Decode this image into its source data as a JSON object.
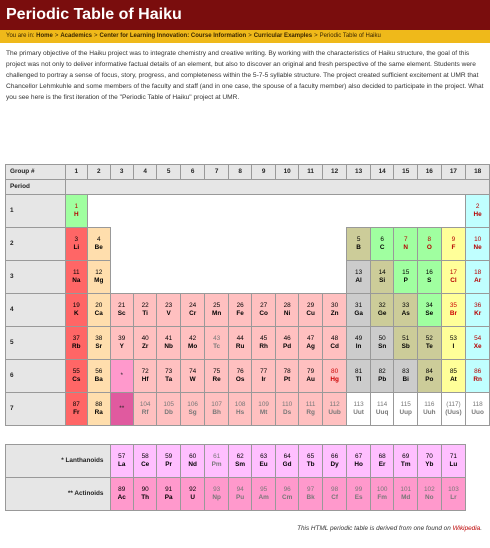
{
  "header": {
    "title": "Periodic Table of Haiku"
  },
  "breadcrumb": {
    "prefix": "You are in:",
    "items": [
      "Home",
      "Academics",
      "Center for Learning Innovation: Course Information",
      "Curricular Examples"
    ],
    "current": "Periodic Table of Haiku",
    "separator": ">"
  },
  "intro": "The primary objective of the Haiku project was to integrate chemistry and creative writing. By working with the characteristics of Haiku structure, the goal of this project was not only to deliver informative factual details of an element, but also to discover an original and fresh perspective of the same element. Students were challenged to portray a sense of focus, story, progress, and completeness within the 5-7-5 syllable structure. The project created sufficient excitement at UMR that Chancellor Lehmkuhle and some members of the faculty and staff (and in one case, the spouse of a faculty member) also decided to participate in the project. What you see here is the first iteration of the \"Periodic Table of Haiku\" project at UMR.",
  "table": {
    "group_label": "Group #",
    "period_label": "Period",
    "groups": [
      "1",
      "2",
      "3",
      "4",
      "5",
      "6",
      "7",
      "8",
      "9",
      "10",
      "11",
      "12",
      "13",
      "14",
      "15",
      "16",
      "17",
      "18"
    ],
    "periods": [
      "1",
      "2",
      "3",
      "4",
      "5",
      "6",
      "7"
    ],
    "rows": [
      [
        {
          "n": "1",
          "s": "H",
          "c": "nonmetal",
          "t": "gas"
        },
        {
          "blank": true,
          "span": 16
        },
        {
          "n": "2",
          "s": "He",
          "c": "noble",
          "t": "gas"
        }
      ],
      [
        {
          "n": "3",
          "s": "Li",
          "c": "alkali",
          "t": "solid"
        },
        {
          "n": "4",
          "s": "Be",
          "c": "alkaline",
          "t": "solid"
        },
        {
          "blank": true,
          "span": 10
        },
        {
          "n": "5",
          "s": "B",
          "c": "metalloid",
          "t": "solid"
        },
        {
          "n": "6",
          "s": "C",
          "c": "nonmetal",
          "t": "solid"
        },
        {
          "n": "7",
          "s": "N",
          "c": "nonmetal",
          "t": "gas"
        },
        {
          "n": "8",
          "s": "O",
          "c": "nonmetal",
          "t": "gas"
        },
        {
          "n": "9",
          "s": "F",
          "c": "halogen",
          "t": "gas"
        },
        {
          "n": "10",
          "s": "Ne",
          "c": "noble",
          "t": "gas"
        }
      ],
      [
        {
          "n": "11",
          "s": "Na",
          "c": "alkali",
          "t": "solid"
        },
        {
          "n": "12",
          "s": "Mg",
          "c": "alkaline",
          "t": "solid"
        },
        {
          "blank": true,
          "span": 10
        },
        {
          "n": "13",
          "s": "Al",
          "c": "poor",
          "t": "solid"
        },
        {
          "n": "14",
          "s": "Si",
          "c": "metalloid",
          "t": "solid"
        },
        {
          "n": "15",
          "s": "P",
          "c": "nonmetal",
          "t": "solid"
        },
        {
          "n": "16",
          "s": "S",
          "c": "nonmetal",
          "t": "solid"
        },
        {
          "n": "17",
          "s": "Cl",
          "c": "halogen",
          "t": "gas"
        },
        {
          "n": "18",
          "s": "Ar",
          "c": "noble",
          "t": "gas"
        }
      ],
      [
        {
          "n": "19",
          "s": "K",
          "c": "alkali",
          "t": "solid"
        },
        {
          "n": "20",
          "s": "Ca",
          "c": "alkaline",
          "t": "solid"
        },
        {
          "n": "21",
          "s": "Sc",
          "c": "transition",
          "t": "solid"
        },
        {
          "n": "22",
          "s": "Ti",
          "c": "transition",
          "t": "solid"
        },
        {
          "n": "23",
          "s": "V",
          "c": "transition",
          "t": "solid"
        },
        {
          "n": "24",
          "s": "Cr",
          "c": "transition",
          "t": "solid"
        },
        {
          "n": "25",
          "s": "Mn",
          "c": "transition",
          "t": "solid"
        },
        {
          "n": "26",
          "s": "Fe",
          "c": "transition",
          "t": "solid"
        },
        {
          "n": "27",
          "s": "Co",
          "c": "transition",
          "t": "solid"
        },
        {
          "n": "28",
          "s": "Ni",
          "c": "transition",
          "t": "solid"
        },
        {
          "n": "29",
          "s": "Cu",
          "c": "transition",
          "t": "solid"
        },
        {
          "n": "30",
          "s": "Zn",
          "c": "transition",
          "t": "solid"
        },
        {
          "n": "31",
          "s": "Ga",
          "c": "poor",
          "t": "solid"
        },
        {
          "n": "32",
          "s": "Ge",
          "c": "metalloid",
          "t": "solid"
        },
        {
          "n": "33",
          "s": "As",
          "c": "metalloid",
          "t": "solid"
        },
        {
          "n": "34",
          "s": "Se",
          "c": "nonmetal",
          "t": "solid"
        },
        {
          "n": "35",
          "s": "Br",
          "c": "halogen",
          "t": "liquid"
        },
        {
          "n": "36",
          "s": "Kr",
          "c": "noble",
          "t": "gas"
        }
      ],
      [
        {
          "n": "37",
          "s": "Rb",
          "c": "alkali",
          "t": "solid"
        },
        {
          "n": "38",
          "s": "Sr",
          "c": "alkaline",
          "t": "solid"
        },
        {
          "n": "39",
          "s": "Y",
          "c": "transition",
          "t": "solid"
        },
        {
          "n": "40",
          "s": "Zr",
          "c": "transition",
          "t": "solid"
        },
        {
          "n": "41",
          "s": "Nb",
          "c": "transition",
          "t": "solid"
        },
        {
          "n": "42",
          "s": "Mo",
          "c": "transition",
          "t": "solid"
        },
        {
          "n": "43",
          "s": "Tc",
          "c": "transition",
          "t": "synth"
        },
        {
          "n": "44",
          "s": "Ru",
          "c": "transition",
          "t": "solid"
        },
        {
          "n": "45",
          "s": "Rh",
          "c": "transition",
          "t": "solid"
        },
        {
          "n": "46",
          "s": "Pd",
          "c": "transition",
          "t": "solid"
        },
        {
          "n": "47",
          "s": "Ag",
          "c": "transition",
          "t": "solid"
        },
        {
          "n": "48",
          "s": "Cd",
          "c": "transition",
          "t": "solid"
        },
        {
          "n": "49",
          "s": "In",
          "c": "poor",
          "t": "solid"
        },
        {
          "n": "50",
          "s": "Sn",
          "c": "poor",
          "t": "solid"
        },
        {
          "n": "51",
          "s": "Sb",
          "c": "metalloid",
          "t": "solid"
        },
        {
          "n": "52",
          "s": "Te",
          "c": "metalloid",
          "t": "solid"
        },
        {
          "n": "53",
          "s": "I",
          "c": "halogen",
          "t": "solid"
        },
        {
          "n": "54",
          "s": "Xe",
          "c": "noble",
          "t": "gas"
        }
      ],
      [
        {
          "n": "55",
          "s": "Cs",
          "c": "alkali",
          "t": "solid"
        },
        {
          "n": "56",
          "s": "Ba",
          "c": "alkaline",
          "t": "solid"
        },
        {
          "mark": "*",
          "kind": "la"
        },
        {
          "n": "72",
          "s": "Hf",
          "c": "transition",
          "t": "solid"
        },
        {
          "n": "73",
          "s": "Ta",
          "c": "transition",
          "t": "solid"
        },
        {
          "n": "74",
          "s": "W",
          "c": "transition",
          "t": "solid"
        },
        {
          "n": "75",
          "s": "Re",
          "c": "transition",
          "t": "solid"
        },
        {
          "n": "76",
          "s": "Os",
          "c": "transition",
          "t": "solid"
        },
        {
          "n": "77",
          "s": "Ir",
          "c": "transition",
          "t": "solid"
        },
        {
          "n": "78",
          "s": "Pt",
          "c": "transition",
          "t": "solid"
        },
        {
          "n": "79",
          "s": "Au",
          "c": "transition",
          "t": "solid"
        },
        {
          "n": "80",
          "s": "Hg",
          "c": "transition",
          "t": "liquid"
        },
        {
          "n": "81",
          "s": "Tl",
          "c": "poor",
          "t": "solid"
        },
        {
          "n": "82",
          "s": "Pb",
          "c": "poor",
          "t": "solid"
        },
        {
          "n": "83",
          "s": "Bi",
          "c": "poor",
          "t": "solid"
        },
        {
          "n": "84",
          "s": "Po",
          "c": "metalloid",
          "t": "solid"
        },
        {
          "n": "85",
          "s": "At",
          "c": "halogen",
          "t": "solid"
        },
        {
          "n": "86",
          "s": "Rn",
          "c": "noble",
          "t": "gas"
        }
      ],
      [
        {
          "n": "87",
          "s": "Fr",
          "c": "alkali",
          "t": "solid"
        },
        {
          "n": "88",
          "s": "Ra",
          "c": "alkaline",
          "t": "solid"
        },
        {
          "mark": "**",
          "kind": "ac"
        },
        {
          "n": "104",
          "s": "Rf",
          "c": "transition",
          "t": "synth"
        },
        {
          "n": "105",
          "s": "Db",
          "c": "transition",
          "t": "synth"
        },
        {
          "n": "106",
          "s": "Sg",
          "c": "transition",
          "t": "synth"
        },
        {
          "n": "107",
          "s": "Bh",
          "c": "transition",
          "t": "synth"
        },
        {
          "n": "108",
          "s": "Hs",
          "c": "transition",
          "t": "synth"
        },
        {
          "n": "109",
          "s": "Mt",
          "c": "transition",
          "t": "synth"
        },
        {
          "n": "110",
          "s": "Ds",
          "c": "transition",
          "t": "synth"
        },
        {
          "n": "111",
          "s": "Rg",
          "c": "transition",
          "t": "synth"
        },
        {
          "n": "112",
          "s": "Uub",
          "c": "transition",
          "t": "synth"
        },
        {
          "n": "113",
          "s": "Uut",
          "c": "white",
          "t": "synth"
        },
        {
          "n": "114",
          "s": "Uuq",
          "c": "white",
          "t": "synth"
        },
        {
          "n": "115",
          "s": "Uup",
          "c": "white",
          "t": "synth"
        },
        {
          "n": "116",
          "s": "Uuh",
          "c": "white",
          "t": "synth"
        },
        {
          "n": "(117)",
          "s": "(Uus)",
          "c": "white",
          "t": "synth"
        },
        {
          "n": "118",
          "s": "Uuo",
          "c": "white",
          "t": "synth"
        }
      ]
    ],
    "series": [
      {
        "label": "* Lanthanoids",
        "items": [
          {
            "n": "57",
            "s": "La",
            "c": "lanth",
            "t": "solid"
          },
          {
            "n": "58",
            "s": "Ce",
            "c": "lanth",
            "t": "solid"
          },
          {
            "n": "59",
            "s": "Pr",
            "c": "lanth",
            "t": "solid"
          },
          {
            "n": "60",
            "s": "Nd",
            "c": "lanth",
            "t": "solid"
          },
          {
            "n": "61",
            "s": "Pm",
            "c": "lanth",
            "t": "synth"
          },
          {
            "n": "62",
            "s": "Sm",
            "c": "lanth",
            "t": "solid"
          },
          {
            "n": "63",
            "s": "Eu",
            "c": "lanth",
            "t": "solid"
          },
          {
            "n": "64",
            "s": "Gd",
            "c": "lanth",
            "t": "solid"
          },
          {
            "n": "65",
            "s": "Tb",
            "c": "lanth",
            "t": "solid"
          },
          {
            "n": "66",
            "s": "Dy",
            "c": "lanth",
            "t": "solid"
          },
          {
            "n": "67",
            "s": "Ho",
            "c": "lanth",
            "t": "solid"
          },
          {
            "n": "68",
            "s": "Er",
            "c": "lanth",
            "t": "solid"
          },
          {
            "n": "69",
            "s": "Tm",
            "c": "lanth",
            "t": "solid"
          },
          {
            "n": "70",
            "s": "Yb",
            "c": "lanth",
            "t": "solid"
          },
          {
            "n": "71",
            "s": "Lu",
            "c": "lanth",
            "t": "solid"
          }
        ]
      },
      {
        "label": "** Actinoids",
        "items": [
          {
            "n": "89",
            "s": "Ac",
            "c": "actin",
            "t": "solid"
          },
          {
            "n": "90",
            "s": "Th",
            "c": "actin",
            "t": "solid"
          },
          {
            "n": "91",
            "s": "Pa",
            "c": "actin",
            "t": "solid"
          },
          {
            "n": "92",
            "s": "U",
            "c": "actin",
            "t": "solid"
          },
          {
            "n": "93",
            "s": "Np",
            "c": "actin",
            "t": "synth"
          },
          {
            "n": "94",
            "s": "Pu",
            "c": "actin",
            "t": "synth"
          },
          {
            "n": "95",
            "s": "Am",
            "c": "actin",
            "t": "synth"
          },
          {
            "n": "96",
            "s": "Cm",
            "c": "actin",
            "t": "synth"
          },
          {
            "n": "97",
            "s": "Bk",
            "c": "actin",
            "t": "synth"
          },
          {
            "n": "98",
            "s": "Cf",
            "c": "actin",
            "t": "synth"
          },
          {
            "n": "99",
            "s": "Es",
            "c": "actin",
            "t": "synth"
          },
          {
            "n": "100",
            "s": "Fm",
            "c": "actin",
            "t": "synth"
          },
          {
            "n": "101",
            "s": "Md",
            "c": "actin",
            "t": "synth"
          },
          {
            "n": "102",
            "s": "No",
            "c": "actin",
            "t": "synth"
          },
          {
            "n": "103",
            "s": "Lr",
            "c": "actin",
            "t": "synth"
          }
        ]
      }
    ]
  },
  "footer": {
    "text": "This HTML periodic table is derived from one found on",
    "link": "Wikipedia",
    "end": "."
  }
}
